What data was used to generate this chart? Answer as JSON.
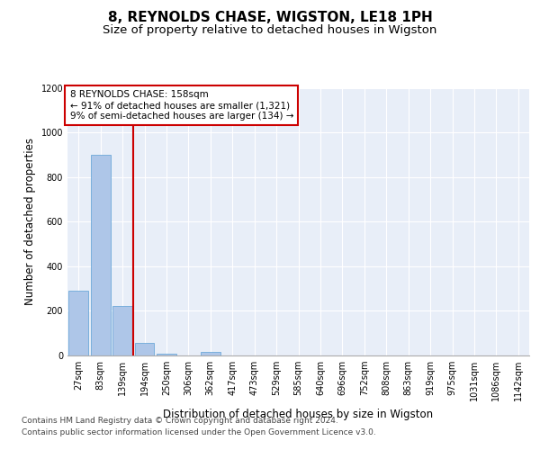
{
  "title": "8, REYNOLDS CHASE, WIGSTON, LE18 1PH",
  "subtitle": "Size of property relative to detached houses in Wigston",
  "xlabel": "Distribution of detached houses by size in Wigston",
  "ylabel": "Number of detached properties",
  "bin_labels": [
    "27sqm",
    "83sqm",
    "139sqm",
    "194sqm",
    "250sqm",
    "306sqm",
    "362sqm",
    "417sqm",
    "473sqm",
    "529sqm",
    "585sqm",
    "640sqm",
    "696sqm",
    "752sqm",
    "808sqm",
    "863sqm",
    "919sqm",
    "975sqm",
    "1031sqm",
    "1086sqm",
    "1142sqm"
  ],
  "bar_values": [
    290,
    900,
    220,
    55,
    10,
    0,
    15,
    0,
    0,
    0,
    0,
    0,
    0,
    0,
    0,
    0,
    0,
    0,
    0,
    0,
    0
  ],
  "bar_color": "#aec6e8",
  "bar_edge_color": "#5a9fd4",
  "ylim": [
    0,
    1200
  ],
  "yticks": [
    0,
    200,
    400,
    600,
    800,
    1000,
    1200
  ],
  "property_line_x": 2.5,
  "annotation_text": "8 REYNOLDS CHASE: 158sqm\n← 91% of detached houses are smaller (1,321)\n9% of semi-detached houses are larger (134) →",
  "annotation_box_color": "#ffffff",
  "annotation_box_edge": "#cc0000",
  "property_line_color": "#cc0000",
  "footer_line1": "Contains HM Land Registry data © Crown copyright and database right 2024.",
  "footer_line2": "Contains public sector information licensed under the Open Government Licence v3.0.",
  "background_color": "#e8eef8",
  "grid_color": "#ffffff",
  "fig_background": "#ffffff",
  "title_fontsize": 11,
  "subtitle_fontsize": 9.5,
  "label_fontsize": 8.5,
  "tick_fontsize": 7,
  "footer_fontsize": 6.5,
  "annotation_fontsize": 7.5
}
